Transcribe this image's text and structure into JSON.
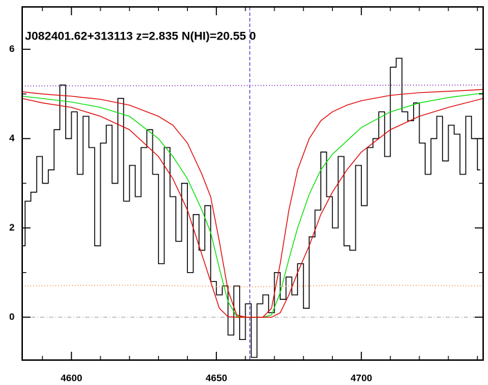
{
  "chart_data": {
    "type": "line",
    "title": "J082401.62+313113 z=2.835 N(HI)=20.55 0",
    "xlim": [
      4583,
      4742
    ],
    "ylim": [
      -0.96,
      6.95
    ],
    "xticks": [
      4600,
      4650,
      4700
    ],
    "xminorticks": [
      4590,
      4610,
      4620,
      4630,
      4640,
      4660,
      4670,
      4680,
      4690,
      4710,
      4720,
      4730,
      4740
    ],
    "yticks": [
      0,
      2,
      4,
      6
    ],
    "yminorticks": [
      1,
      3,
      5
    ],
    "vlines": [
      4661.5
    ],
    "vline_color": "#2020c0",
    "hlines": [
      0
    ],
    "hline_color": "#a0a0a0",
    "series": [
      {
        "color": "#000000",
        "style": "step",
        "x": [
          4583,
          4585,
          4587,
          4589,
          4591,
          4593,
          4595,
          4597,
          4599,
          4601,
          4603,
          4605,
          4607,
          4609,
          4611,
          4613,
          4615,
          4617,
          4619,
          4621,
          4623,
          4625,
          4627,
          4629,
          4631,
          4633,
          4635,
          4637,
          4639,
          4641,
          4643,
          4645,
          4647,
          4649,
          4651,
          4653,
          4655,
          4657,
          4659,
          4661,
          4663,
          4665,
          4667,
          4669,
          4671,
          4673,
          4675,
          4677,
          4679,
          4681,
          4683,
          4685,
          4687,
          4689,
          4691,
          4693,
          4695,
          4697,
          4699,
          4701,
          4703,
          4705,
          4707,
          4709,
          4711,
          4713,
          4715,
          4717,
          4719,
          4721,
          4723,
          4725,
          4727,
          4729,
          4731,
          4733,
          4735,
          4737,
          4739,
          4741
        ],
        "values": [
          1.6,
          2.6,
          2.8,
          3.6,
          3.0,
          3.3,
          4.2,
          5.2,
          4.0,
          4.6,
          3.2,
          4.5,
          3.8,
          1.6,
          3.9,
          4.3,
          3.0,
          4.9,
          2.6,
          3.4,
          2.7,
          3.8,
          4.2,
          3.2,
          1.2,
          3.8,
          2.7,
          1.7,
          3.0,
          1.0,
          2.3,
          1.5,
          2.5,
          0.8,
          0.5,
          0.7,
          -0.4,
          0.7,
          -0.5,
          0.3,
          -0.9,
          0.3,
          0.5,
          0.1,
          1.0,
          0.4,
          0.9,
          0.5,
          1.2,
          0.2,
          1.8,
          2.4,
          3.7,
          2.7,
          2.0,
          3.6,
          1.6,
          1.5,
          3.4,
          2.5,
          3.8,
          4.0,
          4.6,
          3.6,
          5.6,
          5.8,
          4.6,
          4.4,
          4.8,
          3.9,
          3.2,
          4.0,
          4.5,
          3.5,
          4.3,
          4.1,
          3.2,
          4.5,
          4.0,
          3.3
        ]
      },
      {
        "color": "#ff8c40",
        "style": "dotted",
        "x": [
          4583,
          4620,
          4660,
          4700,
          4742
        ],
        "values": [
          0.7,
          0.72,
          0.68,
          0.72,
          0.7
        ]
      },
      {
        "color": "#8020c0",
        "style": "dotted",
        "x": [
          4583,
          4742
        ],
        "values": [
          5.18,
          5.2
        ]
      },
      {
        "color": "#00dd00",
        "style": "solid",
        "x": [
          4583,
          4590,
          4600,
          4610,
          4620,
          4630,
          4635,
          4640,
          4645,
          4648,
          4651,
          4654,
          4657,
          4660,
          4663,
          4666,
          4669,
          4672,
          4675,
          4678,
          4682,
          4686,
          4690,
          4695,
          4700,
          4710,
          4720,
          4730,
          4742
        ],
        "values": [
          4.95,
          4.9,
          4.82,
          4.7,
          4.5,
          4.0,
          3.6,
          3.1,
          2.4,
          1.9,
          1.1,
          0.35,
          0.02,
          0,
          0,
          0,
          0.05,
          0.55,
          1.3,
          2.0,
          2.75,
          3.3,
          3.65,
          3.95,
          4.25,
          4.6,
          4.8,
          4.92,
          5.02
        ]
      },
      {
        "color": "#dd0000",
        "style": "solid",
        "x": [
          4583,
          4590,
          4600,
          4610,
          4620,
          4630,
          4635,
          4640,
          4645,
          4648,
          4651,
          4654,
          4657,
          4660,
          4663,
          4666,
          4669,
          4672,
          4675,
          4678,
          4682,
          4686,
          4690,
          4695,
          4700,
          4710,
          4720,
          4730,
          4742
        ],
        "values": [
          5.05,
          5.0,
          4.95,
          4.88,
          4.75,
          4.5,
          4.3,
          3.9,
          3.2,
          2.7,
          1.7,
          0.6,
          0.05,
          0,
          0,
          0,
          0.2,
          1.2,
          2.4,
          3.3,
          4.0,
          4.4,
          4.6,
          4.75,
          4.85,
          4.97,
          5.03,
          5.06,
          5.1
        ]
      },
      {
        "color": "#dd0000",
        "style": "solid",
        "x": [
          4583,
          4590,
          4600,
          4610,
          4620,
          4630,
          4635,
          4640,
          4645,
          4648,
          4651,
          4654,
          4657,
          4660,
          4663,
          4666,
          4669,
          4672,
          4675,
          4678,
          4682,
          4686,
          4690,
          4695,
          4700,
          4710,
          4720,
          4730,
          4742
        ],
        "values": [
          4.9,
          4.8,
          4.7,
          4.5,
          4.2,
          3.6,
          3.1,
          2.4,
          1.4,
          0.8,
          0.2,
          0.01,
          0,
          0,
          0,
          0,
          0,
          0.1,
          0.5,
          1.0,
          1.6,
          2.3,
          2.8,
          3.3,
          3.7,
          4.2,
          4.5,
          4.7,
          4.9
        ]
      }
    ]
  }
}
